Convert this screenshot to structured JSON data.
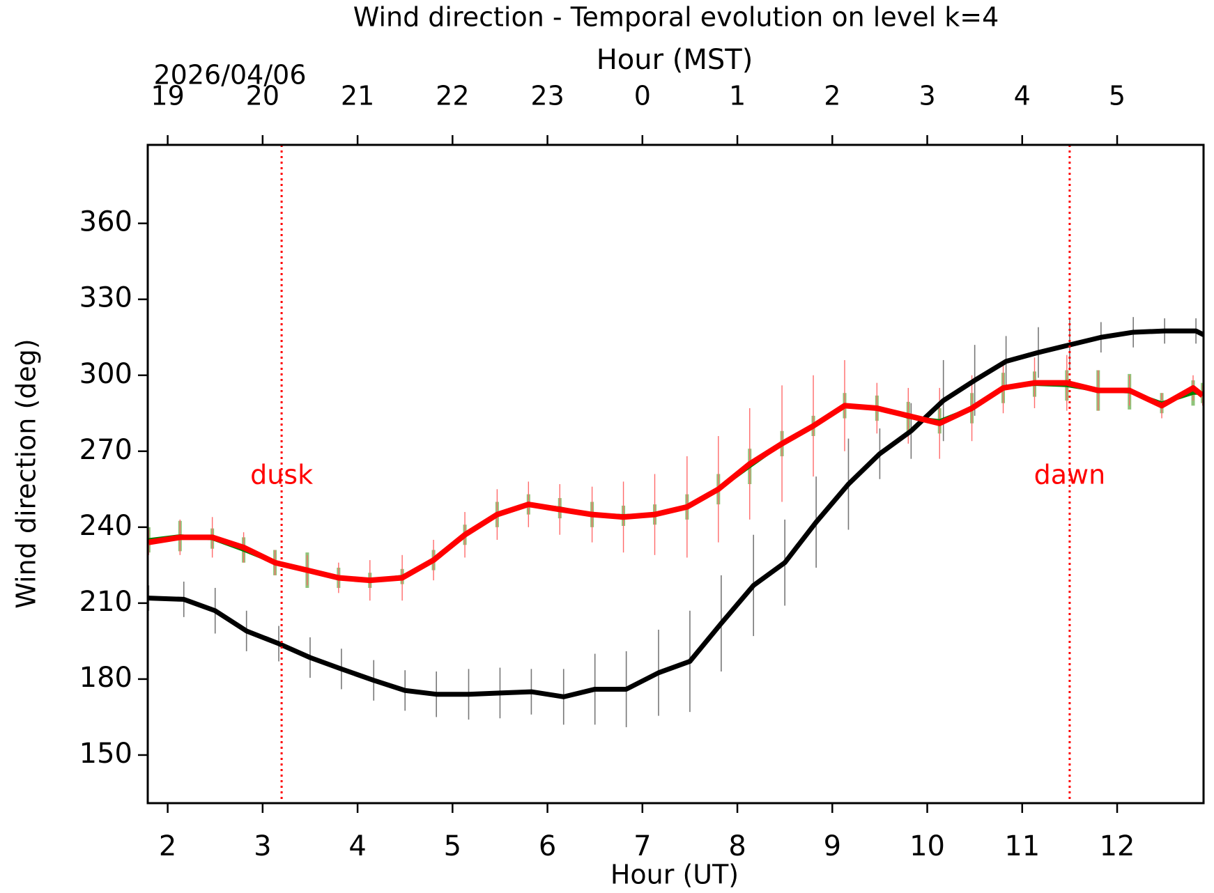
{
  "chart_data": {
    "type": "line",
    "title": "Wind direction - Temporal evolution on level k=4",
    "xlabel": "Hour (UT)",
    "ylabel": "Wind direction (deg)",
    "top_xlabel": "Hour (MST)",
    "top_date": "2026/04/06",
    "xlim": [
      1.79,
      12.91
    ],
    "ylim": [
      131,
      391
    ],
    "xticks": [
      2,
      3,
      4,
      5,
      6,
      7,
      8,
      9,
      10,
      11,
      12
    ],
    "yticks": [
      150,
      180,
      210,
      240,
      270,
      300,
      330,
      360
    ],
    "top_xticks": [
      {
        "value": 2,
        "label": "19"
      },
      {
        "value": 3,
        "label": "20"
      },
      {
        "value": 4,
        "label": "21"
      },
      {
        "value": 5,
        "label": "22"
      },
      {
        "value": 6,
        "label": "23"
      },
      {
        "value": 7,
        "label": "0"
      },
      {
        "value": 8,
        "label": "1"
      },
      {
        "value": 9,
        "label": "2"
      },
      {
        "value": 10,
        "label": "3"
      },
      {
        "value": 11,
        "label": "4"
      },
      {
        "value": 12,
        "label": "5"
      }
    ],
    "annotations": [
      {
        "text": "dusk",
        "x": 3.2,
        "y": 260,
        "color": "#ff0000"
      },
      {
        "text": "dawn",
        "x": 11.5,
        "y": 260,
        "color": "#ff0000"
      }
    ],
    "vlines": [
      {
        "x": 3.2,
        "color": "#ff0000"
      },
      {
        "x": 11.5,
        "color": "#ff0000"
      }
    ],
    "series": [
      {
        "color": "#000000",
        "err_color": "#777777",
        "x": [
          1.8,
          2.17,
          2.5,
          2.83,
          3.17,
          3.5,
          3.83,
          4.17,
          4.5,
          4.83,
          5.17,
          5.5,
          5.83,
          6.17,
          6.5,
          6.83,
          7.17,
          7.5,
          7.83,
          8.17,
          8.5,
          8.83,
          9.17,
          9.5,
          9.83,
          10.17,
          10.5,
          10.83,
          11.17,
          11.5,
          11.83,
          12.17,
          12.5,
          12.83,
          12.91
        ],
        "values": [
          212,
          211.5,
          207,
          199,
          194,
          188.5,
          184,
          179.5,
          175.5,
          174,
          174,
          174.5,
          175,
          173,
          176,
          176,
          182.5,
          187,
          202,
          217,
          226,
          242,
          257,
          269,
          278,
          290,
          298,
          305.5,
          309,
          312,
          315,
          317,
          317.5,
          317.5,
          316
        ],
        "errors": [
          5,
          7,
          9,
          8,
          7,
          8,
          8,
          8,
          8,
          9,
          10,
          10,
          9,
          11,
          14,
          15,
          17,
          20,
          19,
          20,
          17,
          18,
          18,
          10,
          11,
          16,
          14,
          10,
          10,
          10,
          6,
          6,
          5,
          5,
          4
        ]
      },
      {
        "color": "#008000",
        "err_color": "#8fc47a",
        "x": [
          1.8,
          2.13,
          2.47,
          2.8,
          3.13,
          3.47,
          3.8,
          4.13,
          4.47,
          4.8,
          5.13,
          5.47,
          5.8,
          6.13,
          6.47,
          6.8,
          7.13,
          7.47,
          7.8,
          8.13,
          8.47,
          8.8,
          9.13,
          9.47,
          9.8,
          10.13,
          10.47,
          10.8,
          11.13,
          11.47,
          11.8,
          12.13,
          12.47,
          12.8,
          12.9
        ],
        "values": [
          235,
          236.5,
          235.5,
          231,
          226,
          223,
          220,
          219,
          220.5,
          227,
          237,
          245,
          249,
          247.5,
          245,
          244.5,
          245,
          248,
          255,
          264,
          273,
          280,
          288,
          287,
          283.5,
          282,
          287,
          295,
          296.5,
          296,
          294,
          293.5,
          289,
          293,
          293
        ],
        "errors": [
          5,
          6,
          4,
          5,
          5,
          7,
          4,
          3,
          3,
          4,
          4,
          5,
          4,
          4,
          5,
          4,
          4,
          5,
          6,
          7,
          5,
          4,
          5,
          5,
          6,
          5,
          6,
          6,
          5,
          6,
          8,
          7,
          4,
          5,
          4
        ]
      },
      {
        "color": "#ff0000",
        "err_color": "#ff6a6a",
        "x": [
          1.8,
          2.13,
          2.47,
          2.8,
          3.13,
          3.47,
          3.8,
          4.13,
          4.47,
          4.8,
          5.13,
          5.47,
          5.8,
          6.13,
          6.47,
          6.8,
          7.13,
          7.47,
          7.8,
          8.13,
          8.47,
          8.8,
          9.13,
          9.47,
          9.8,
          10.13,
          10.47,
          10.8,
          11.13,
          11.47,
          11.8,
          12.13,
          12.47,
          12.8,
          12.9
        ],
        "values": [
          234,
          236,
          236,
          232,
          226,
          223,
          220,
          219,
          220,
          227,
          237,
          245,
          249,
          247,
          245,
          244,
          245,
          248,
          255,
          265,
          273,
          280,
          288,
          287,
          284,
          281,
          287,
          295,
          297,
          297,
          294,
          294,
          288,
          295,
          292
        ],
        "errors": [
          5,
          7,
          8,
          6,
          5,
          6,
          6,
          8,
          9,
          8,
          9,
          10,
          9,
          10,
          11,
          14,
          16,
          20,
          21,
          22,
          23,
          20,
          18,
          10,
          11,
          14,
          13,
          10,
          10,
          11,
          8,
          6,
          5,
          5,
          4
        ]
      }
    ]
  }
}
